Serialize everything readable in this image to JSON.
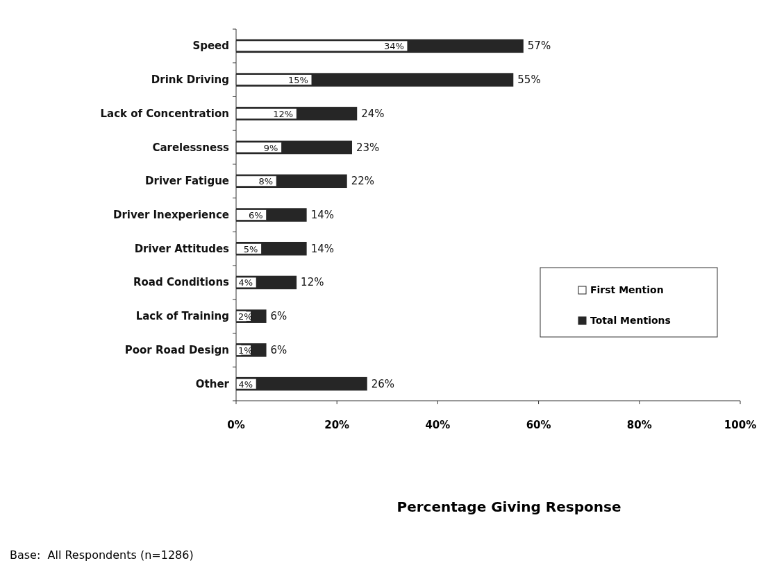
{
  "chart_data": {
    "type": "bar",
    "orientation": "horizontal",
    "categories": [
      "Speed",
      "Drink Driving",
      "Lack of Concentration",
      "Carelessness",
      "Driver Fatigue",
      "Driver Inexperience",
      "Driver Attitudes",
      "Road Conditions",
      "Lack of Training",
      "Poor Road Design",
      "Other"
    ],
    "series": [
      {
        "name": "Total Mentions",
        "color": "#262626",
        "values": [
          57,
          55,
          24,
          23,
          22,
          14,
          14,
          12,
          6,
          6,
          26
        ],
        "value_labels": [
          "57%",
          "55%",
          "24%",
          "23%",
          "22%",
          "14%",
          "14%",
          "12%",
          "6%",
          "6%",
          "26%"
        ]
      },
      {
        "name": "First Mention",
        "color": "#ffffff",
        "values": [
          34,
          15,
          12,
          9,
          8,
          6,
          5,
          4,
          2,
          1,
          4
        ],
        "value_labels": [
          "34%",
          "15%",
          "12%",
          "9%",
          "8%",
          "6%",
          "5%",
          "4%",
          "2%",
          "1%",
          "4%"
        ]
      }
    ],
    "xlim": [
      0,
      100
    ],
    "xticks": [
      {
        "value": 0,
        "label": "0%"
      },
      {
        "value": 20,
        "label": "20%"
      },
      {
        "value": 40,
        "label": "40%"
      },
      {
        "value": 60,
        "label": "60%"
      },
      {
        "value": 80,
        "label": "80%"
      },
      {
        "value": 100,
        "label": "100%"
      }
    ],
    "xlabel": "Percentage Giving Response",
    "legend": "right",
    "grid": false,
    "annotations": [
      "Base:  All Respondents (n=1286)"
    ]
  }
}
